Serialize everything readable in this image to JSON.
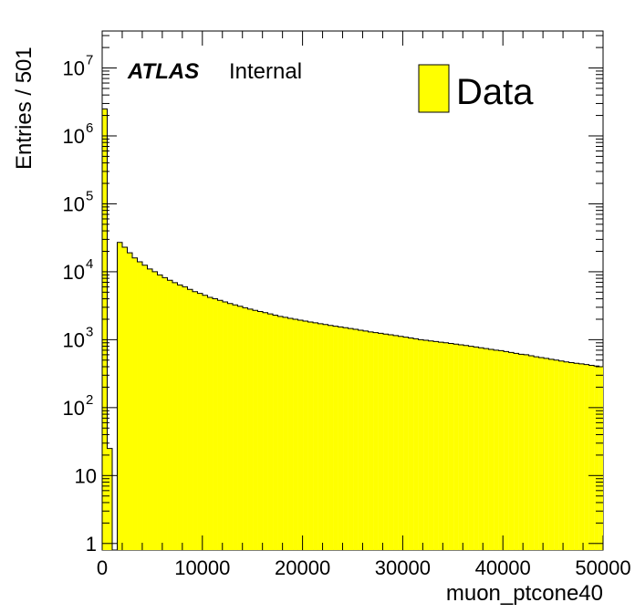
{
  "chart_data": {
    "type": "bar",
    "xlabel": "muon_ptcone40",
    "ylabel": "Entries / 501",
    "xlim": [
      0,
      50000
    ],
    "ylim": [
      0.8,
      35000000
    ],
    "y_scale": "log",
    "bin_width": 501,
    "x_ticks": [
      {
        "value": 0,
        "label": "0"
      },
      {
        "value": 10000,
        "label": "10000"
      },
      {
        "value": 20000,
        "label": "20000"
      },
      {
        "value": 30000,
        "label": "30000"
      },
      {
        "value": 40000,
        "label": "40000"
      },
      {
        "value": 50000,
        "label": "50000"
      }
    ],
    "y_ticks": [
      {
        "value": 1,
        "label": "1"
      },
      {
        "value": 10,
        "label": "10"
      },
      {
        "value": 100,
        "base": "10",
        "exp": "2"
      },
      {
        "value": 1000,
        "base": "10",
        "exp": "3"
      },
      {
        "value": 10000,
        "base": "10",
        "exp": "4"
      },
      {
        "value": 100000,
        "base": "10",
        "exp": "5"
      },
      {
        "value": 1000000,
        "base": "10",
        "exp": "6"
      },
      {
        "value": 10000000,
        "base": "10",
        "exp": "7"
      }
    ],
    "legend_position": "top-right",
    "fill_color": "#ffff00",
    "series": [
      {
        "name": "Data",
        "values": [
          2500000,
          25,
          0,
          27000,
          23000,
          19000,
          16000,
          14000,
          12500,
          11000,
          10000,
          9000,
          8200,
          7500,
          6900,
          6400,
          6000,
          5500,
          5100,
          4800,
          4500,
          4200,
          4000,
          3800,
          3600,
          3400,
          3250,
          3100,
          2950,
          2820,
          2700,
          2600,
          2500,
          2400,
          2300,
          2200,
          2130,
          2060,
          2000,
          1940,
          1880,
          1820,
          1770,
          1720,
          1670,
          1620,
          1580,
          1540,
          1500,
          1460,
          1420,
          1380,
          1340,
          1300,
          1270,
          1240,
          1210,
          1180,
          1150,
          1120,
          1090,
          1060,
          1030,
          1000,
          980,
          960,
          940,
          920,
          900,
          880,
          860,
          840,
          820,
          800,
          780,
          760,
          740,
          720,
          700,
          690,
          670,
          650,
          630,
          610,
          600,
          580,
          560,
          545,
          530,
          515,
          500,
          485,
          470,
          460,
          450,
          440,
          430,
          420,
          410,
          400
        ]
      }
    ]
  },
  "branding": {
    "experiment": "ATLAS",
    "status": "Internal"
  }
}
